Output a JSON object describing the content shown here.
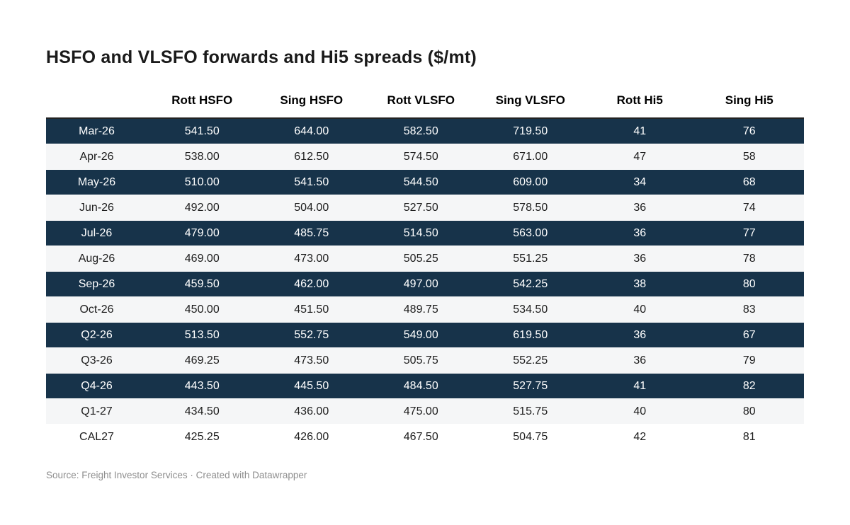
{
  "title": "HSFO and VLSFO forwards and Hi5 spreads ($/mt)",
  "colors": {
    "highlight_row_bg": "#17334A",
    "highlight_row_text": "#FFFFFF",
    "stripe_row_bg": "#F5F6F7",
    "header_rule": "#222222",
    "source_text": "#8E8E8E"
  },
  "table": {
    "columns": [
      "",
      "Rott HSFO",
      "Sing HSFO",
      "Rott VLSFO",
      "Sing VLSFO",
      "Rott Hi5",
      "Sing Hi5"
    ],
    "rows": [
      {
        "label": "Mar-26",
        "values": [
          "541.50",
          "644.00",
          "582.50",
          "719.50",
          "41",
          "76"
        ],
        "highlight": true
      },
      {
        "label": "Apr-26",
        "values": [
          "538.00",
          "612.50",
          "574.50",
          "671.00",
          "47",
          "58"
        ],
        "highlight": false
      },
      {
        "label": "May-26",
        "values": [
          "510.00",
          "541.50",
          "544.50",
          "609.00",
          "34",
          "68"
        ],
        "highlight": true
      },
      {
        "label": "Jun-26",
        "values": [
          "492.00",
          "504.00",
          "527.50",
          "578.50",
          "36",
          "74"
        ],
        "highlight": false
      },
      {
        "label": "Jul-26",
        "values": [
          "479.00",
          "485.75",
          "514.50",
          "563.00",
          "36",
          "77"
        ],
        "highlight": true
      },
      {
        "label": "Aug-26",
        "values": [
          "469.00",
          "473.00",
          "505.25",
          "551.25",
          "36",
          "78"
        ],
        "highlight": false
      },
      {
        "label": "Sep-26",
        "values": [
          "459.50",
          "462.00",
          "497.00",
          "542.25",
          "38",
          "80"
        ],
        "highlight": true
      },
      {
        "label": "Oct-26",
        "values": [
          "450.00",
          "451.50",
          "489.75",
          "534.50",
          "40",
          "83"
        ],
        "highlight": false
      },
      {
        "label": "Q2-26",
        "values": [
          "513.50",
          "552.75",
          "549.00",
          "619.50",
          "36",
          "67"
        ],
        "highlight": true
      },
      {
        "label": "Q3-26",
        "values": [
          "469.25",
          "473.50",
          "505.75",
          "552.25",
          "36",
          "79"
        ],
        "highlight": false
      },
      {
        "label": "Q4-26",
        "values": [
          "443.50",
          "445.50",
          "484.50",
          "527.75",
          "41",
          "82"
        ],
        "highlight": true
      },
      {
        "label": "Q1-27",
        "values": [
          "434.50",
          "436.00",
          "475.00",
          "515.75",
          "40",
          "80"
        ],
        "highlight": false
      },
      {
        "label": "CAL27",
        "values": [
          "425.25",
          "426.00",
          "467.50",
          "504.75",
          "42",
          "81"
        ],
        "highlight": false
      }
    ]
  },
  "footer": {
    "source": "Source: Freight Investor Services · Created with Datawrapper"
  },
  "chart_data": {
    "type": "table",
    "title": "HSFO and VLSFO forwards and Hi5 spreads ($/mt)",
    "categories": [
      "Mar-26",
      "Apr-26",
      "May-26",
      "Jun-26",
      "Jul-26",
      "Aug-26",
      "Sep-26",
      "Oct-26",
      "Q2-26",
      "Q3-26",
      "Q4-26",
      "Q1-27",
      "CAL27"
    ],
    "series": [
      {
        "name": "Rott HSFO",
        "values": [
          541.5,
          538.0,
          510.0,
          492.0,
          479.0,
          469.0,
          459.5,
          450.0,
          513.5,
          469.25,
          443.5,
          434.5,
          425.25
        ]
      },
      {
        "name": "Sing HSFO",
        "values": [
          644.0,
          612.5,
          541.5,
          504.0,
          485.75,
          473.0,
          462.0,
          451.5,
          552.75,
          473.5,
          445.5,
          436.0,
          426.0
        ]
      },
      {
        "name": "Rott VLSFO",
        "values": [
          582.5,
          574.5,
          544.5,
          527.5,
          514.5,
          505.25,
          497.0,
          489.75,
          549.0,
          505.75,
          484.5,
          475.0,
          467.5
        ]
      },
      {
        "name": "Sing VLSFO",
        "values": [
          719.5,
          671.0,
          609.0,
          578.5,
          563.0,
          551.25,
          542.25,
          534.5,
          619.5,
          552.25,
          527.75,
          515.75,
          504.75
        ]
      },
      {
        "name": "Rott Hi5",
        "values": [
          41,
          47,
          34,
          36,
          36,
          36,
          38,
          40,
          36,
          36,
          41,
          40,
          42
        ]
      },
      {
        "name": "Sing Hi5",
        "values": [
          76,
          58,
          68,
          74,
          77,
          78,
          80,
          83,
          67,
          79,
          82,
          80,
          81
        ]
      }
    ],
    "highlighted_rows": [
      "Mar-26",
      "May-26",
      "Jul-26",
      "Sep-26",
      "Q2-26",
      "Q4-26"
    ],
    "legend_position": "none",
    "grid": "off"
  }
}
